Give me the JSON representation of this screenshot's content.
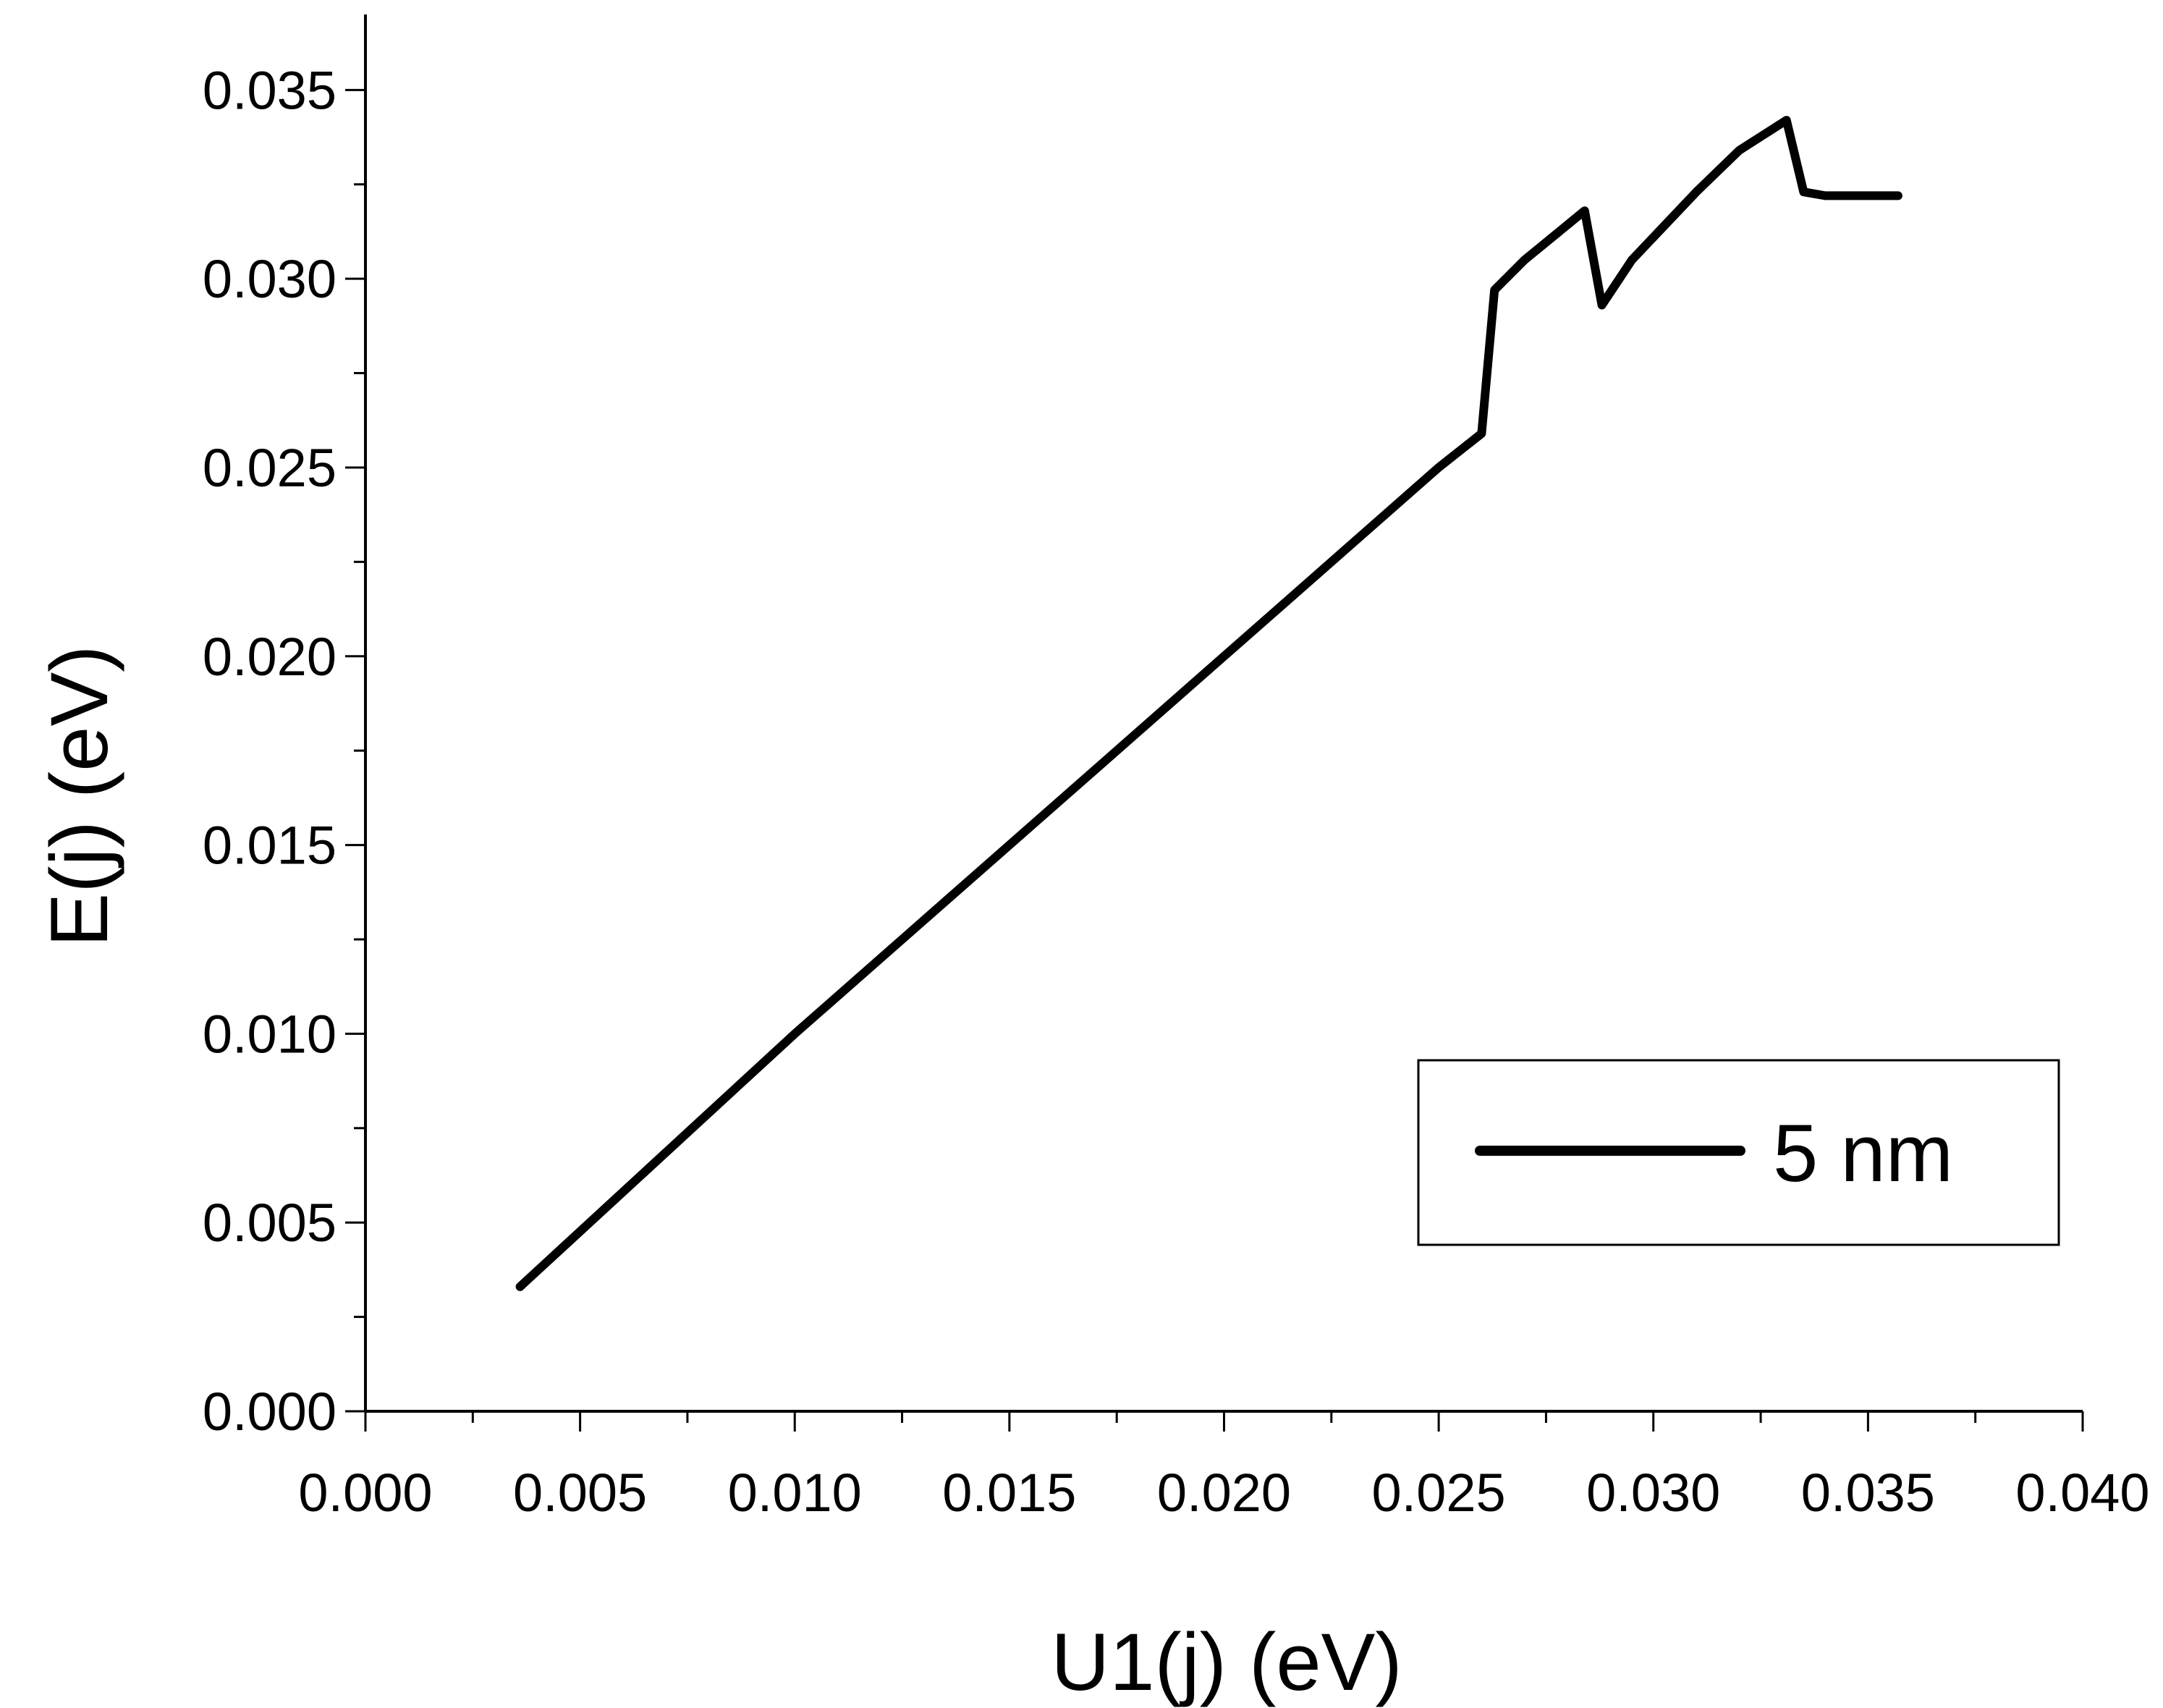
{
  "chart_data": {
    "type": "line",
    "xlabel": "U1(j)   (eV)",
    "ylabel": "E(j)   (eV)",
    "xlim": [
      0.0,
      0.04
    ],
    "ylim": [
      0.0,
      0.037
    ],
    "x_ticks": [
      "0.000",
      "0.005",
      "0.010",
      "0.015",
      "0.020",
      "0.025",
      "0.030",
      "0.035",
      "0.040"
    ],
    "y_ticks": [
      "0.000",
      "0.005",
      "0.010",
      "0.015",
      "0.020",
      "0.025",
      "0.030",
      "0.035"
    ],
    "grid": false,
    "legend_position": "bottom-right",
    "series": [
      {
        "name": "5 nm",
        "color": "#000000",
        "points": [
          [
            0.0036,
            0.0033
          ],
          [
            0.01,
            0.01
          ],
          [
            0.02,
            0.02
          ],
          [
            0.025,
            0.025
          ],
          [
            0.026,
            0.0259
          ],
          [
            0.0263,
            0.0297
          ],
          [
            0.027,
            0.0305
          ],
          [
            0.0284,
            0.0318
          ],
          [
            0.0288,
            0.0293
          ],
          [
            0.0295,
            0.0305
          ],
          [
            0.031,
            0.0323
          ],
          [
            0.032,
            0.0334
          ],
          [
            0.0331,
            0.0342
          ],
          [
            0.0335,
            0.0323
          ],
          [
            0.034,
            0.0322
          ],
          [
            0.0357,
            0.0322
          ]
        ]
      }
    ]
  }
}
